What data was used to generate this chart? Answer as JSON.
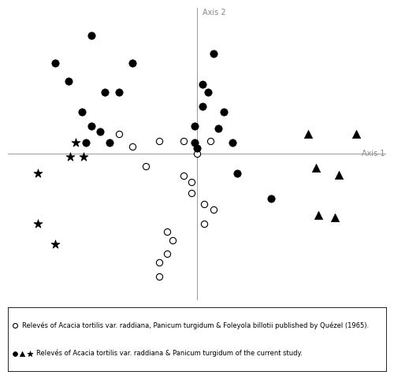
{
  "axis1_label": "Axis 1",
  "axis2_label": "Axis 2",
  "legend_line1": "Relevés of Acacia tortilis var. raddiana, Panicum turgidum & Foleyola billotii published by Quézel (1965).",
  "legend_line2": "Relevés of Acacia tortilis var. raddiana & Panicum turgidum of the current study.",
  "open_circles": [
    [
      -0.58,
      0.14
    ],
    [
      -0.48,
      0.05
    ],
    [
      -0.28,
      0.09
    ],
    [
      -0.1,
      0.09
    ],
    [
      0.1,
      0.09
    ],
    [
      0.0,
      0.0
    ],
    [
      -0.38,
      -0.09
    ],
    [
      -0.1,
      -0.16
    ],
    [
      -0.04,
      -0.2
    ],
    [
      -0.04,
      -0.28
    ],
    [
      0.05,
      -0.36
    ],
    [
      0.12,
      -0.4
    ],
    [
      0.05,
      -0.5
    ],
    [
      -0.22,
      -0.56
    ],
    [
      -0.18,
      -0.62
    ],
    [
      -0.22,
      -0.72
    ],
    [
      -0.28,
      -0.78
    ],
    [
      -0.28,
      -0.88
    ]
  ],
  "filled_circles": [
    [
      -0.78,
      0.85
    ],
    [
      -1.05,
      0.65
    ],
    [
      -0.48,
      0.65
    ],
    [
      -0.95,
      0.52
    ],
    [
      -0.68,
      0.44
    ],
    [
      -0.58,
      0.44
    ],
    [
      -0.85,
      0.3
    ],
    [
      -0.78,
      0.2
    ],
    [
      -0.72,
      0.16
    ],
    [
      -0.82,
      0.08
    ],
    [
      -0.65,
      0.08
    ],
    [
      0.12,
      0.72
    ],
    [
      0.04,
      0.5
    ],
    [
      0.08,
      0.44
    ],
    [
      0.04,
      0.34
    ],
    [
      0.2,
      0.3
    ],
    [
      -0.02,
      0.2
    ],
    [
      0.16,
      0.18
    ],
    [
      -0.02,
      0.08
    ],
    [
      0.26,
      0.08
    ],
    [
      0.0,
      0.04
    ],
    [
      0.3,
      -0.14
    ],
    [
      0.55,
      -0.32
    ]
  ],
  "filled_triangles": [
    [
      0.82,
      0.14
    ],
    [
      1.18,
      0.14
    ],
    [
      0.88,
      -0.1
    ],
    [
      1.05,
      -0.15
    ],
    [
      0.9,
      -0.44
    ],
    [
      1.02,
      -0.46
    ]
  ],
  "filled_stars": [
    [
      -1.18,
      -0.14
    ],
    [
      -0.94,
      -0.02
    ],
    [
      -0.84,
      -0.02
    ],
    [
      -0.9,
      0.08
    ],
    [
      -1.18,
      -0.5
    ],
    [
      -1.05,
      -0.65
    ]
  ],
  "xlim": [
    -1.4,
    1.4
  ],
  "ylim": [
    -1.05,
    1.05
  ],
  "vline_x": 0.0,
  "hline_y": 0.0,
  "background_color": "#ffffff",
  "marker_size_circle_open": 35,
  "marker_size_circle_filled": 45,
  "marker_size_triangle": 55,
  "marker_size_star": 70,
  "axis_label_fontsize": 7,
  "legend_fontsize": 6.0
}
